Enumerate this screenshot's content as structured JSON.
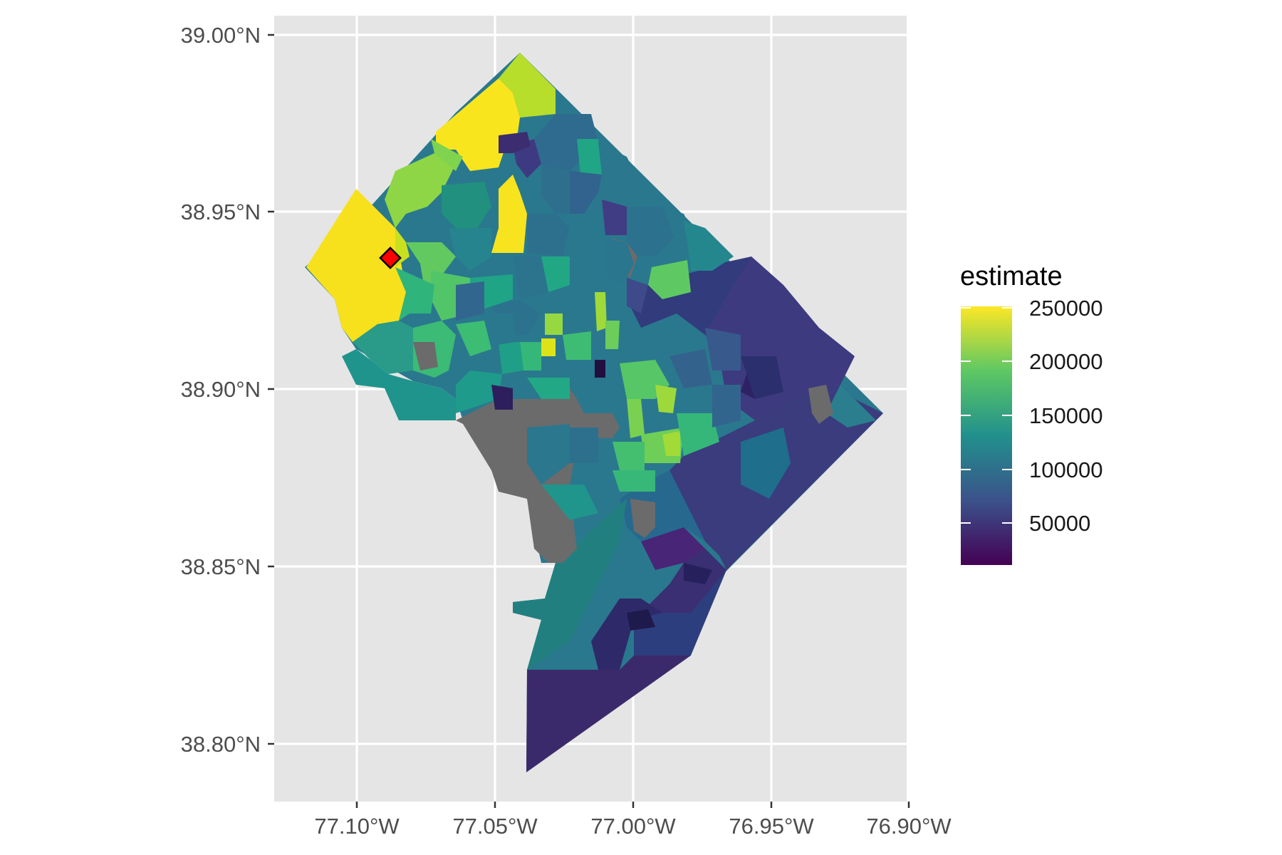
{
  "map": {
    "x_ticks": [
      "77.10°W",
      "77.05°W",
      "77.00°W",
      "76.95°W",
      "76.90°W"
    ],
    "y_ticks": [
      "39.00°N",
      "38.95°N",
      "38.90°N",
      "38.85°N",
      "38.80°N"
    ],
    "x_values": [
      -77.1,
      -77.05,
      -77.0,
      -76.95,
      -76.9
    ],
    "y_values": [
      39.0,
      38.95,
      38.9,
      38.85,
      38.8
    ],
    "xlim": [
      -77.13,
      -76.9
    ],
    "ylim": [
      38.78,
      39.01
    ],
    "panel_background": "#E5E5E5",
    "grid_color": "#FFFFFF",
    "missing_color": "#6B6B6B",
    "marker": {
      "lon": -77.087,
      "lat": 38.937,
      "shape": "diamond",
      "fill": "#FF0000",
      "stroke": "#000000"
    }
  },
  "legend": {
    "title": "estimate",
    "labels": [
      "250000",
      "200000",
      "150000",
      "100000",
      "50000"
    ],
    "values": [
      250000,
      200000,
      150000,
      100000,
      50000
    ],
    "range": [
      10000,
      250000
    ],
    "palette": [
      "#440154",
      "#3B528B",
      "#21908C",
      "#5DC863",
      "#FDE725"
    ],
    "placement": "right"
  }
}
